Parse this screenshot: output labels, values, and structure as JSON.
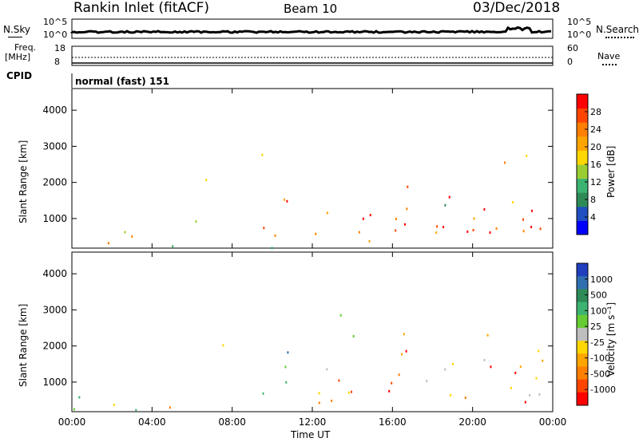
{
  "header": {
    "station": "Rankin Inlet (fitACF)",
    "beam": "Beam 10",
    "date": "03/Dec/2018"
  },
  "top_panels": {
    "nsky_label": "N.Sky",
    "nsky_ticks": [
      "10^5",
      "10^0"
    ],
    "nsearch_label": "N.Search",
    "nsearch_ticks": [
      "10^5",
      "10^0"
    ],
    "freq_label_line1": "Freq.",
    "freq_label_line2": "[MHz]",
    "freq_ticks": [
      "18",
      "8"
    ],
    "nave_label": "Nave",
    "nave_ticks": [
      "60",
      "0"
    ],
    "cpid_label": "CPID",
    "cpid_value": "normal (fast) 151"
  },
  "chart_data": [
    {
      "type": "heatmap",
      "name": "power",
      "ylabel": "Slant Range [km]",
      "xlabel": "Time UT",
      "y_ticks": [
        1000,
        2000,
        3000,
        4000
      ],
      "ylim": [
        180,
        4600
      ],
      "xlim": [
        0,
        24
      ],
      "colorbar_label": "Power [dB]",
      "colorbar_ticks": [
        "4",
        "8",
        "12",
        "16",
        "20",
        "24",
        "28"
      ],
      "colorbar_colors": [
        "#0000ff",
        "#1f4fc0",
        "#2e8b57",
        "#3cb371",
        "#9acd32",
        "#ffd700",
        "#ffa500",
        "#ff7f00",
        "#ff4500",
        "#ff0000"
      ]
    },
    {
      "type": "heatmap",
      "name": "velocity",
      "ylabel": "Slant Range [km]",
      "xlabel": "Time UT",
      "y_ticks": [
        1000,
        2000,
        3000,
        4000
      ],
      "ylim": [
        180,
        4600
      ],
      "xlim": [
        0,
        24
      ],
      "colorbar_label": "Velocity [m s⁻¹]",
      "colorbar_ticks": [
        "1000",
        "500",
        "100",
        "25",
        "-25",
        "-100",
        "-500",
        "-1000"
      ],
      "colorbar_colors": [
        "#1f3fbf",
        "#2f6fb0",
        "#2e8b57",
        "#3cb371",
        "#66cc33",
        "#bebebe",
        "#ffd700",
        "#ffa500",
        "#ff7f00",
        "#ff4500",
        "#ff0000"
      ]
    }
  ],
  "x_ticks": [
    "00:00",
    "04:00",
    "08:00",
    "12:00",
    "16:00",
    "20:00",
    "00:00"
  ],
  "xlabel": "Time UT"
}
